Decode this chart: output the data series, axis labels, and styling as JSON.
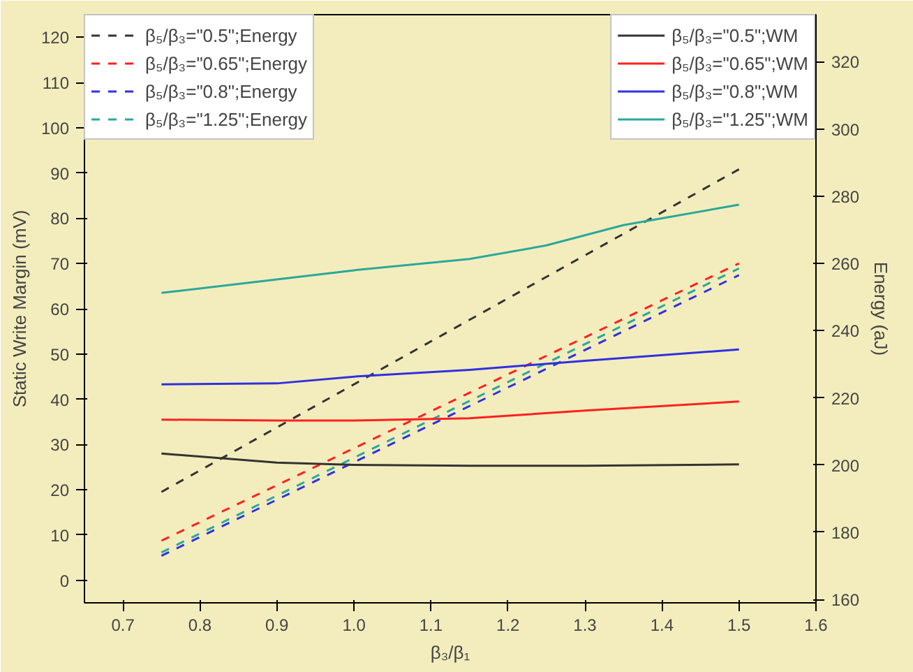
{
  "chart_data": {
    "type": "line",
    "xlabel": "β₃/β₁",
    "ylabel": "Static Write Margin (mV)",
    "y2label": "Energy (aJ)",
    "x": [
      0.75,
      1.5
    ],
    "xlim": [
      0.65,
      1.6
    ],
    "xticks": [
      0.7,
      0.8,
      0.9,
      {
        "value": 1.0,
        "label": "1.0"
      },
      1.1,
      1.2,
      1.3,
      1.4,
      1.5,
      1.6
    ],
    "ylim": [
      -5,
      125
    ],
    "yticks": [
      0,
      10,
      20,
      30,
      40,
      50,
      60,
      70,
      80,
      90,
      100,
      110,
      120
    ],
    "y2lim": [
      159,
      334
    ],
    "y2ticks": [
      160,
      180,
      200,
      220,
      240,
      260,
      280,
      300,
      320
    ],
    "grid": false,
    "legend": "top",
    "marker": "none",
    "series": [
      {
        "name": "β₅/β₃=\"0.5\";Energy",
        "color": "#333333",
        "axis": "y2",
        "line_style": "dashed",
        "values": [
          192,
          288
        ]
      },
      {
        "name": "β₅/β₃=\"0.65\";Energy",
        "color": "#ff2020",
        "axis": "y2",
        "line_style": "dashed",
        "values": [
          177.5,
          260
        ]
      },
      {
        "name": "β₅/β₃=\"0.8\";Energy",
        "color": "#3030e0",
        "axis": "y2",
        "line_style": "dashed",
        "values": [
          173,
          256.5
        ]
      },
      {
        "name": "β₅/β₃=\"1.25\";Energy",
        "color": "#2aa89a",
        "axis": "y2",
        "line_style": "dashed",
        "values": [
          174,
          258.5
        ]
      },
      {
        "name": "β₅/β₃=\"0.5\";WM",
        "color": "#333333",
        "line_style": "solid",
        "x": [
          0.75,
          0.9,
          1.0,
          1.15,
          1.3,
          1.5
        ],
        "values": [
          28,
          26,
          25.5,
          25.3,
          25.3,
          25.6
        ]
      },
      {
        "name": "β₅/β₃=\"0.65\";WM",
        "color": "#ff2020",
        "line_style": "solid",
        "x": [
          0.75,
          0.9,
          1.0,
          1.15,
          1.3,
          1.5
        ],
        "values": [
          35.5,
          35.3,
          35.3,
          35.8,
          37.5,
          39.5
        ]
      },
      {
        "name": "β₅/β₃=\"0.8\";WM",
        "color": "#3030e0",
        "line_style": "solid",
        "x": [
          0.75,
          0.9,
          1.0,
          1.15,
          1.3,
          1.5
        ],
        "values": [
          43.3,
          43.5,
          45,
          46.5,
          48.5,
          51
        ]
      },
      {
        "name": "β₅/β₃=\"1.25\";WM",
        "color": "#2aa89a",
        "line_style": "solid",
        "x": [
          0.75,
          0.9,
          1.0,
          1.15,
          1.25,
          1.35,
          1.5
        ],
        "values": [
          63.5,
          66.5,
          68.5,
          71,
          74,
          78.5,
          83
        ]
      }
    ]
  }
}
